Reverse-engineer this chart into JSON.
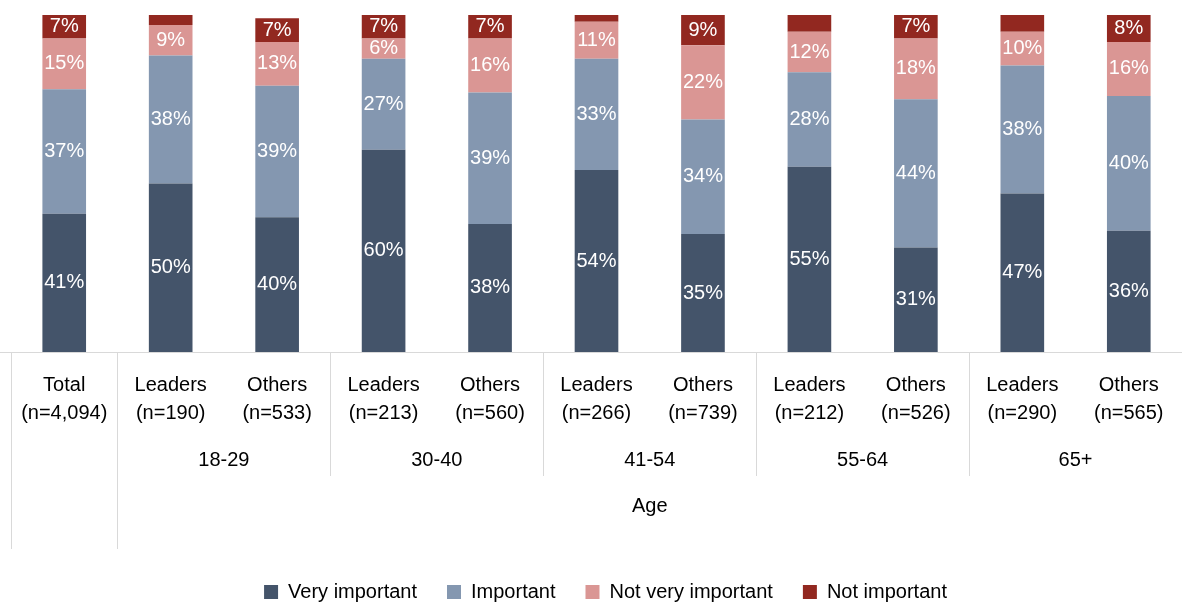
{
  "chart_data": {
    "type": "bar",
    "stacked": true,
    "legend": "bottom",
    "ylim": [
      0,
      100
    ],
    "tick_labels": "x",
    "categories": [
      "Total (n=4,094)",
      "Leaders (n=190)",
      "Others (n=533)",
      "Leaders (n=213)",
      "Others (n=560)",
      "Leaders (n=266)",
      "Others (n=739)",
      "Leaders (n=212)",
      "Others (n=526)",
      "Leaders (n=290)",
      "Others (n=565)"
    ],
    "annotations": [
      "18-29",
      "30-40",
      "41-54",
      "55-64",
      "65+",
      "Age"
    ],
    "series": [
      {
        "name": "Very important",
        "color": "#44546a",
        "values": [
          41,
          50,
          40,
          60,
          38,
          54,
          35,
          55,
          31,
          47,
          36
        ],
        "value_labels": [
          "41%",
          "50%",
          "40%",
          "60%",
          "38%",
          "54%",
          "35%",
          "55%",
          "31%",
          "47%",
          "36%"
        ]
      },
      {
        "name": "Important",
        "color": "#8497b0",
        "values": [
          37,
          38,
          39,
          27,
          39,
          33,
          34,
          28,
          44,
          38,
          40
        ],
        "value_labels": [
          "37%",
          "38%",
          "39%",
          "27%",
          "39%",
          "33%",
          "34%",
          "28%",
          "44%",
          "38%",
          "40%"
        ]
      },
      {
        "name": "Not very important",
        "color": "#da9694",
        "values": [
          15,
          9,
          13,
          6,
          16,
          11,
          22,
          12,
          18,
          10,
          16
        ],
        "value_labels": [
          "15%",
          "9%",
          "13%",
          "6%",
          "16%",
          "11%",
          "22%",
          "12%",
          "18%",
          "10%",
          "16%"
        ]
      },
      {
        "name": "Not important",
        "color": "#922820",
        "values": [
          7,
          3,
          7,
          7,
          7,
          2,
          9,
          5,
          7,
          5,
          8
        ],
        "value_labels": [
          "7%",
          null,
          "7%",
          "7%",
          "7%",
          null,
          "9%",
          null,
          "7%",
          null,
          "8%"
        ]
      }
    ]
  }
}
